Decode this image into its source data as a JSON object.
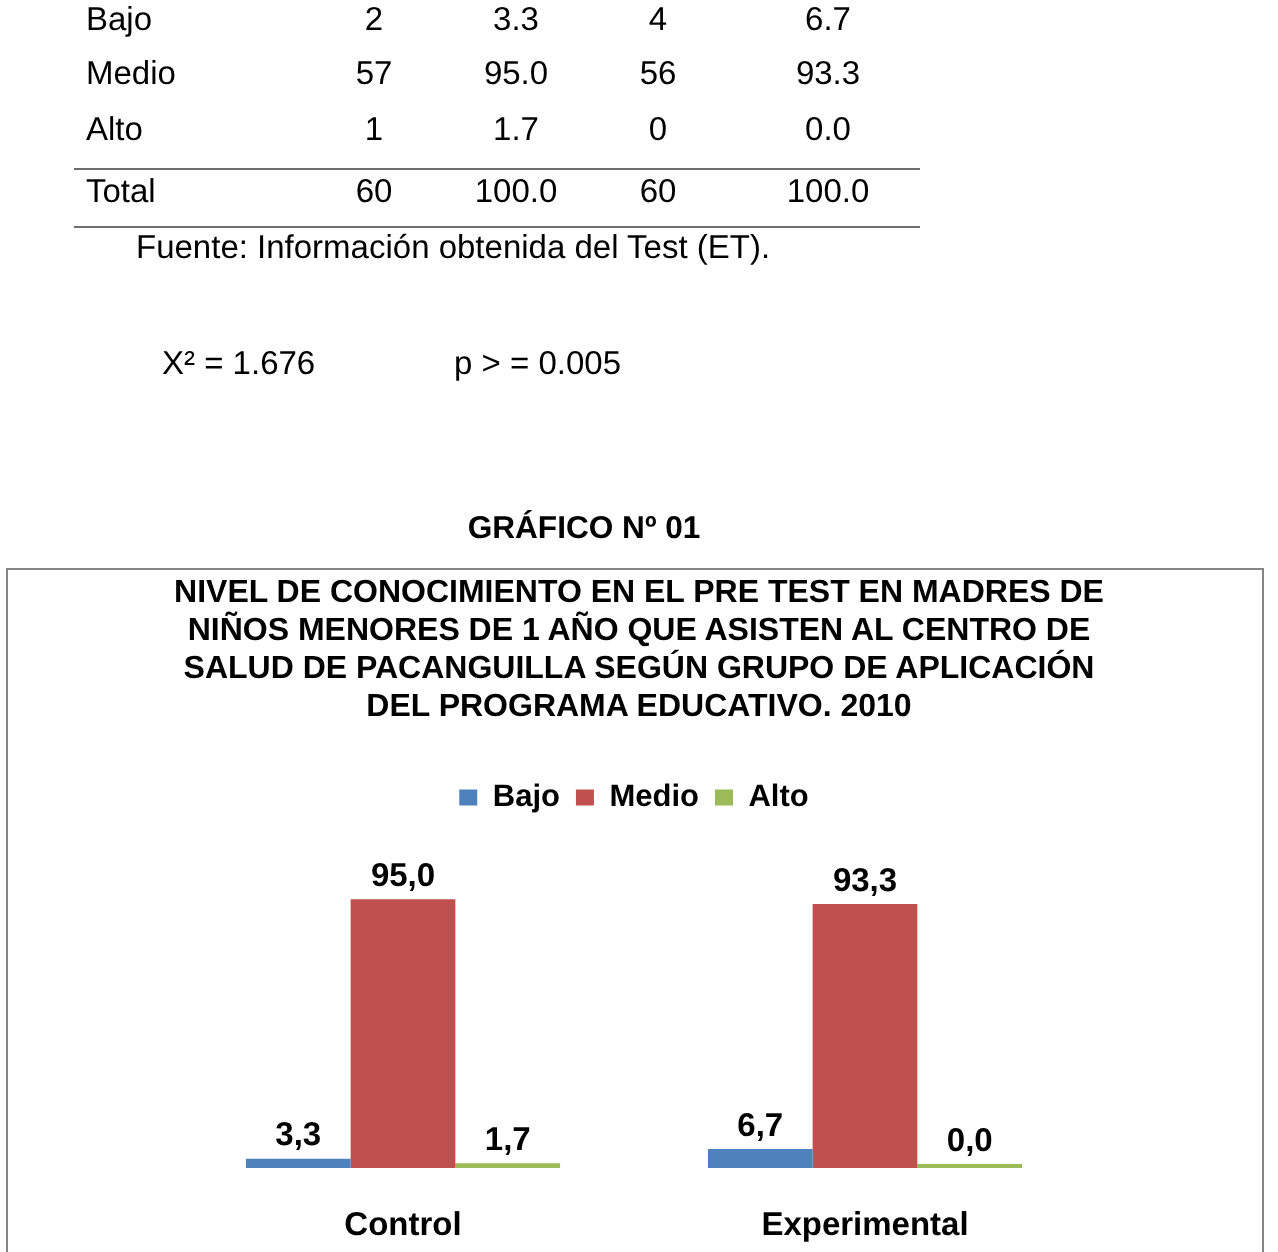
{
  "chart_data": {
    "type": "bar",
    "title": "NIVEL DE CONOCIMIENTO EN EL PRE TEST EN MADRES DE NIÑOS MENORES DE 1 AÑO QUE ASISTEN AL CENTRO DE SALUD DE PACANGUILLA SEGÚN GRUPO DE APLICACIÓN DEL PROGRAMA EDUCATIVO. 2010",
    "categories": [
      "Control",
      "Experimental"
    ],
    "series": [
      {
        "name": "Bajo",
        "color": "#4f81bd",
        "values": [
          3.3,
          6.7
        ],
        "value_labels": [
          "3,3",
          "6,7"
        ]
      },
      {
        "name": "Medio",
        "color": "#c0504d",
        "values": [
          95.0,
          93.3
        ],
        "value_labels": [
          "95,0",
          "93,3"
        ]
      },
      {
        "name": "Alto",
        "color": "#9bbb59",
        "values": [
          1.7,
          0.0
        ],
        "value_labels": [
          "1,7",
          "0,0"
        ]
      }
    ],
    "legend": "top",
    "tick_labels": "x",
    "annotations": [
      "Bajo 2 3.3 4 6.7",
      "Medio 57 95.0 56 93.3",
      "Alto 1 1.7 0 0.0",
      "Total 60 100.0 60 100.0",
      "Fuente: Información obtenida del Test (ET).",
      "X² = 1.676",
      "p > = 0.005",
      "GRÁFICO Nº 01"
    ]
  }
}
